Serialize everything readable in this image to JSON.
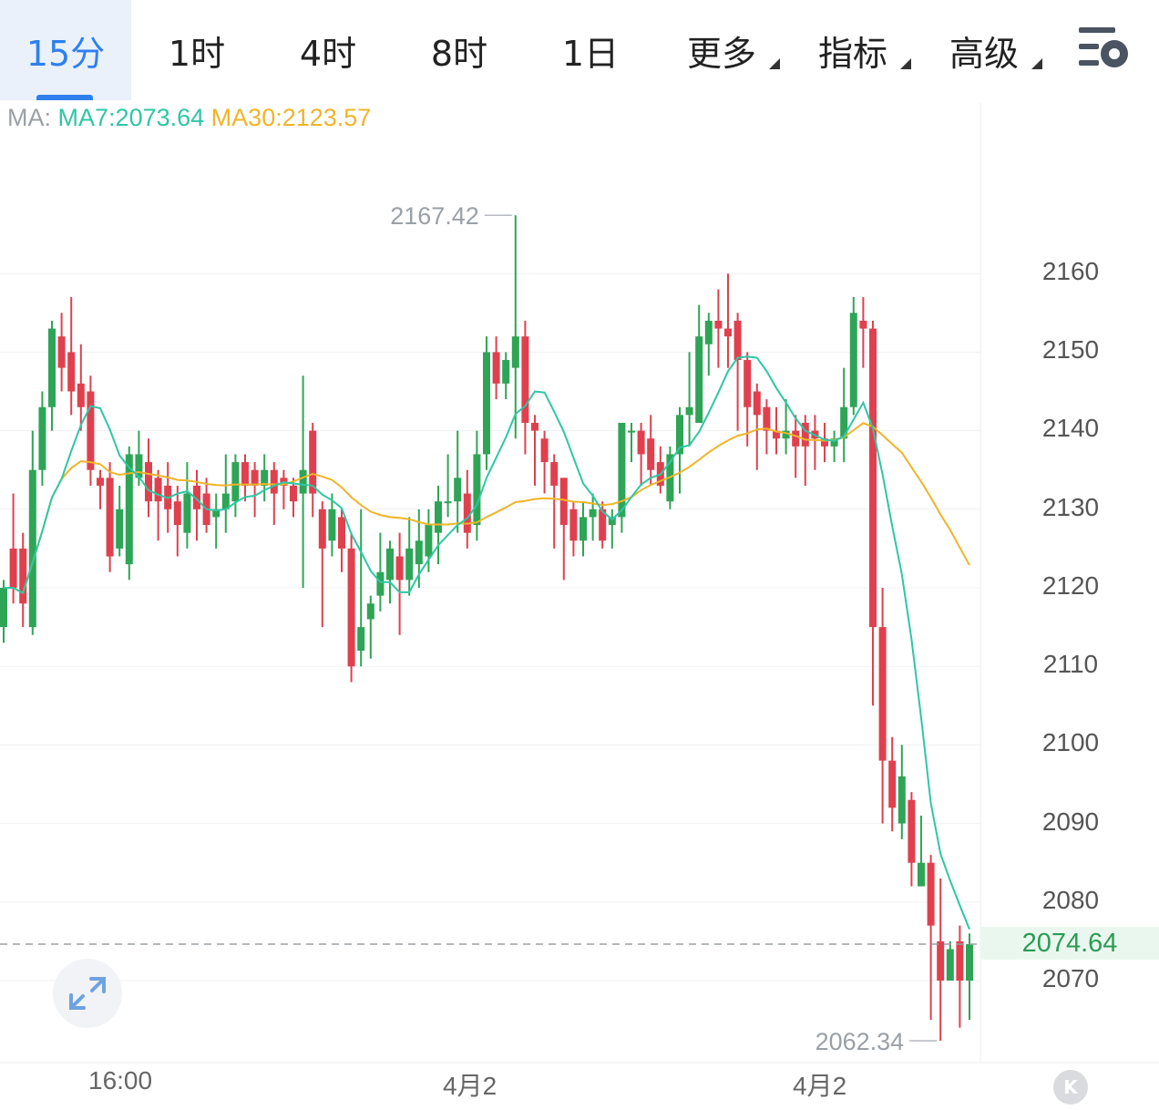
{
  "tabs": [
    {
      "label": "15分",
      "active": true
    },
    {
      "label": "1时"
    },
    {
      "label": "4时"
    },
    {
      "label": "8时"
    },
    {
      "label": "1日"
    },
    {
      "label": "更多",
      "dropdown": true
    },
    {
      "label": "指标",
      "dropdown": true
    },
    {
      "label": "高级",
      "dropdown": true
    }
  ],
  "settings_icon": "settings-gear-icon",
  "ma_legend": {
    "label": "MA:",
    "ma7": "MA7:2073.64",
    "ma30": "MA30:2123.57",
    "ma7_color": "#2ec7a4",
    "ma30_color": "#f0b429"
  },
  "colors": {
    "up": "#2ea556",
    "down": "#e0404e",
    "accent": "#2f80ed"
  },
  "chart_data": {
    "type": "candlestick",
    "y_ticks": [
      "2160",
      "2150",
      "2140",
      "2130",
      "2120",
      "2110",
      "2100",
      "2090",
      "2080",
      "2070"
    ],
    "ylim": [
      2060,
      2180
    ],
    "x_labels": [
      "16:00",
      "4月2",
      "4月2"
    ],
    "current_price": "2074.64",
    "high_label": "2167.42",
    "low_label": "2062.34",
    "candles": [
      [
        2115,
        2120,
        2113,
        2121
      ],
      [
        2125,
        2120,
        2118,
        2132
      ],
      [
        2125,
        2118,
        2115,
        2127
      ],
      [
        2115,
        2135,
        2114,
        2140
      ],
      [
        2135,
        2143,
        2133,
        2145
      ],
      [
        2143,
        2153,
        2140,
        2154
      ],
      [
        2152,
        2148,
        2145,
        2155
      ],
      [
        2150,
        2145,
        2142,
        2157
      ],
      [
        2146,
        2143,
        2140,
        2151
      ],
      [
        2145,
        2135,
        2133,
        2147
      ],
      [
        2134,
        2133,
        2130,
        2135
      ],
      [
        2134,
        2124,
        2122,
        2136
      ],
      [
        2125,
        2130,
        2124,
        2133
      ],
      [
        2123,
        2137,
        2121,
        2138
      ],
      [
        2134,
        2137,
        2133,
        2140
      ],
      [
        2136,
        2131,
        2129,
        2139
      ],
      [
        2134,
        2131,
        2126,
        2135
      ],
      [
        2133,
        2130,
        2127,
        2136
      ],
      [
        2131,
        2128,
        2124,
        2133
      ],
      [
        2127,
        2132,
        2125,
        2136
      ],
      [
        2133,
        2130,
        2126,
        2135
      ],
      [
        2132,
        2128,
        2127,
        2134
      ],
      [
        2129,
        2130,
        2125,
        2132
      ],
      [
        2130,
        2132,
        2127,
        2137
      ],
      [
        2131,
        2136,
        2129,
        2137
      ],
      [
        2136,
        2133,
        2131,
        2137
      ],
      [
        2135,
        2133,
        2129,
        2136
      ],
      [
        2133,
        2135,
        2131,
        2137
      ],
      [
        2135,
        2132,
        2128,
        2136
      ],
      [
        2134,
        2133,
        2130,
        2135
      ],
      [
        2133,
        2131,
        2129,
        2134
      ],
      [
        2132,
        2135,
        2120,
        2147
      ],
      [
        2140,
        2132,
        2129,
        2141
      ],
      [
        2130,
        2125,
        2115,
        2131
      ],
      [
        2126,
        2130,
        2124,
        2132
      ],
      [
        2129,
        2125,
        2122,
        2130
      ],
      [
        2125,
        2110,
        2108,
        2127
      ],
      [
        2112,
        2115,
        2110,
        2130
      ],
      [
        2116,
        2118,
        2111,
        2119
      ],
      [
        2119,
        2122,
        2117,
        2127
      ],
      [
        2121,
        2125,
        2118,
        2126
      ],
      [
        2124,
        2121,
        2114,
        2127
      ],
      [
        2121,
        2125,
        2119,
        2129
      ],
      [
        2123,
        2126,
        2120,
        2130
      ],
      [
        2124,
        2128,
        2122,
        2130
      ],
      [
        2127,
        2131,
        2123,
        2133
      ],
      [
        2131,
        2131,
        2129,
        2137
      ],
      [
        2131,
        2134,
        2127,
        2140
      ],
      [
        2132,
        2127,
        2125,
        2135
      ],
      [
        2128,
        2137,
        2126,
        2140
      ],
      [
        2137,
        2150,
        2135,
        2152
      ],
      [
        2150,
        2146,
        2144,
        2152
      ],
      [
        2146,
        2149,
        2144,
        2150
      ],
      [
        2148,
        2152,
        2139,
        2167.42
      ],
      [
        2152,
        2141,
        2137,
        2154
      ],
      [
        2141,
        2140,
        2133,
        2142
      ],
      [
        2139,
        2136,
        2132,
        2140
      ],
      [
        2136,
        2133,
        2125,
        2137
      ],
      [
        2134,
        2128,
        2121,
        2134
      ],
      [
        2130,
        2126,
        2124,
        2131
      ],
      [
        2126,
        2129,
        2124,
        2131
      ],
      [
        2129,
        2130,
        2126,
        2132
      ],
      [
        2130,
        2126,
        2125,
        2131
      ],
      [
        2128,
        2129,
        2125,
        2130
      ],
      [
        2129,
        2141,
        2127,
        2141
      ],
      [
        2140,
        2140,
        2136,
        2141
      ],
      [
        2140,
        2137,
        2133,
        2141
      ],
      [
        2139,
        2135,
        2133,
        2142
      ],
      [
        2136,
        2133,
        2132,
        2138
      ],
      [
        2131,
        2137,
        2130,
        2138
      ],
      [
        2137,
        2142,
        2132,
        2143
      ],
      [
        2142,
        2143,
        2138,
        2150
      ],
      [
        2141,
        2152,
        2141,
        2156
      ],
      [
        2151,
        2154,
        2147,
        2155
      ],
      [
        2154,
        2153,
        2148,
        2158
      ],
      [
        2153,
        2152,
        2148,
        2160
      ],
      [
        2154,
        2149,
        2140,
        2155
      ],
      [
        2149,
        2143,
        2138,
        2150
      ],
      [
        2145,
        2142,
        2135,
        2146
      ],
      [
        2143,
        2140,
        2137,
        2144
      ],
      [
        2140,
        2139,
        2137,
        2143
      ],
      [
        2139,
        2140,
        2137,
        2144
      ],
      [
        2140,
        2138,
        2134,
        2142
      ],
      [
        2141,
        2138,
        2133,
        2142
      ],
      [
        2140,
        2139,
        2135,
        2142
      ],
      [
        2139,
        2138,
        2136,
        2141
      ],
      [
        2138,
        2139,
        2136,
        2140
      ],
      [
        2139,
        2143,
        2136,
        2148
      ],
      [
        2143,
        2155,
        2142,
        2157
      ],
      [
        2154,
        2153,
        2148,
        2157
      ],
      [
        2153,
        2115,
        2105,
        2154
      ],
      [
        2115,
        2098,
        2090,
        2120
      ],
      [
        2098,
        2092,
        2089,
        2101
      ],
      [
        2090,
        2096,
        2088,
        2100
      ],
      [
        2093,
        2085,
        2082,
        2094
      ],
      [
        2082,
        2085,
        2082,
        2091
      ],
      [
        2085,
        2077,
        2065,
        2086
      ],
      [
        2075,
        2070,
        2062.34,
        2083
      ],
      [
        2070,
        2074,
        2070,
        2075
      ],
      [
        2075,
        2070,
        2064,
        2077
      ],
      [
        2070,
        2074.64,
        2065,
        2076
      ]
    ]
  },
  "expand_icon": "expand-arrows-icon",
  "k_button_label": "K"
}
